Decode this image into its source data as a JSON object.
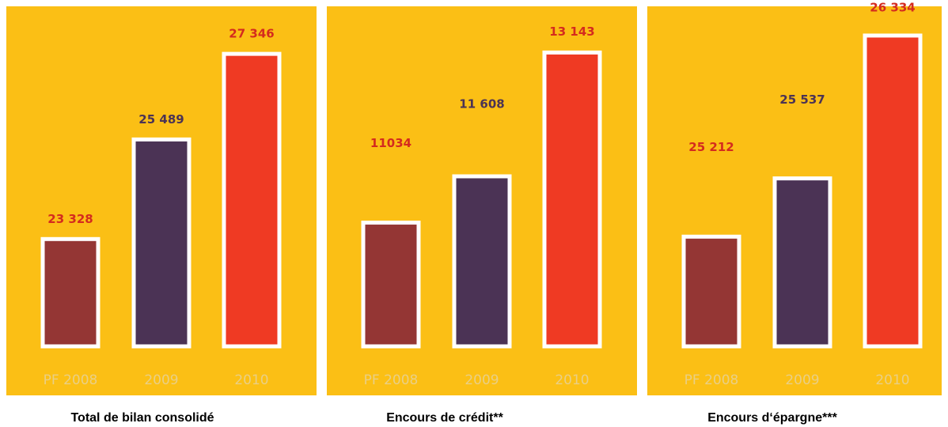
{
  "chart_data": [
    {
      "type": "bar",
      "title": "Total de bilan consolidé",
      "categories": [
        "PF 2008",
        "2009",
        "2010"
      ],
      "values": [
        23328,
        25489,
        27346
      ],
      "value_labels": [
        "23 328",
        "25 489",
        "27 346"
      ],
      "colors": [
        "#943634",
        "#4b3355",
        "#ef3a23"
      ],
      "value_label_colors": [
        "#d42b1e",
        "#4b3355",
        "#d42b1e"
      ],
      "ylim": [
        21000,
        28000
      ]
    },
    {
      "type": "bar",
      "title": "Encours de crédit**",
      "categories": [
        "PF 2008",
        "2009",
        "2010"
      ],
      "values": [
        11034,
        11608,
        13143
      ],
      "value_labels": [
        "11034",
        "11 608",
        "13 143"
      ],
      "colors": [
        "#943634",
        "#4b3355",
        "#ef3a23"
      ],
      "value_label_colors": [
        "#d42b1e",
        "#4b3355",
        "#d42b1e"
      ],
      "ylim": [
        9500,
        13500
      ]
    },
    {
      "type": "bar",
      "title": "Encours d‘épargne***",
      "categories": [
        "PF 2008",
        "2009",
        "2010"
      ],
      "values": [
        25212,
        25537,
        26334
      ],
      "value_labels": [
        "25 212",
        "25 537",
        "26 334"
      ],
      "colors": [
        "#943634",
        "#4b3355",
        "#ef3a23"
      ],
      "value_label_colors": [
        "#d42b1e",
        "#4b3355",
        "#d42b1e"
      ],
      "ylim": [
        24600,
        26400
      ]
    }
  ]
}
